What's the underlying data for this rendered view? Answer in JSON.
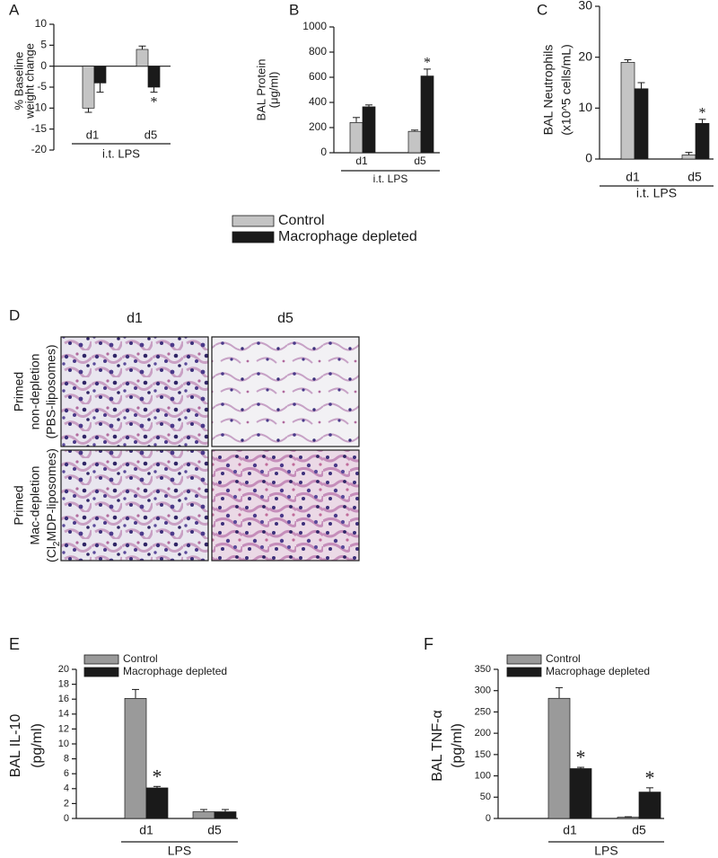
{
  "chart_data": [
    {
      "type": "bar",
      "label": "A",
      "y_label": [
        "% Baseline",
        "weight change"
      ],
      "categories": [
        "d1",
        "d5"
      ],
      "group_label": "i.t. LPS",
      "series": [
        {
          "name": "Control",
          "color": "#c4c4c4",
          "values": [
            -10,
            4
          ],
          "errors": [
            1,
            0.8
          ]
        },
        {
          "name": "Macrophage depleted",
          "color": "#1a1a1a",
          "values": [
            -4,
            -5
          ],
          "errors": [
            2.2,
            1.2
          ]
        }
      ],
      "ylim": [
        -20,
        10
      ],
      "yticks": [
        -20,
        -15,
        -10,
        -5,
        0,
        5,
        10
      ],
      "legend": "below",
      "annotations": [
        {
          "text": "*",
          "category": "d5",
          "series": "Macrophage depleted"
        }
      ]
    },
    {
      "type": "bar",
      "label": "B",
      "y_label": [
        "BAL Protein",
        "(μg/ml)"
      ],
      "categories": [
        "d1",
        "d5"
      ],
      "group_label": "i.t. LPS",
      "series": [
        {
          "name": "Control",
          "color": "#c4c4c4",
          "values": [
            240,
            170
          ],
          "errors": [
            40,
            10
          ]
        },
        {
          "name": "Macrophage depleted",
          "color": "#1a1a1a",
          "values": [
            365,
            610
          ],
          "errors": [
            15,
            55
          ]
        }
      ],
      "ylim": [
        0,
        1000
      ],
      "yticks": [
        0,
        200,
        400,
        600,
        800,
        1000
      ],
      "annotations": [
        {
          "text": "*",
          "category": "d5",
          "series": "Macrophage depleted"
        }
      ]
    },
    {
      "type": "bar",
      "label": "C",
      "y_label": [
        "BAL Neutrophils",
        "(x10^5 cells/mL)"
      ],
      "categories": [
        "d1",
        "d5"
      ],
      "group_label": "i.t. LPS",
      "series": [
        {
          "name": "Control",
          "color": "#c4c4c4",
          "values": [
            19,
            0.8
          ],
          "errors": [
            0.5,
            0.5
          ]
        },
        {
          "name": "Macrophage depleted",
          "color": "#1a1a1a",
          "values": [
            13.8,
            7
          ],
          "errors": [
            1.2,
            0.8
          ]
        }
      ],
      "ylim": [
        0,
        30
      ],
      "yticks": [
        0,
        10,
        20,
        30
      ],
      "annotations": [
        {
          "text": "*",
          "category": "d5",
          "series": "Macrophage depleted"
        }
      ]
    },
    {
      "type": "bar",
      "label": "E",
      "y_label": [
        "BAL IL-10",
        "(pg/ml)"
      ],
      "categories": [
        "d1",
        "d5"
      ],
      "group_label": "LPS",
      "series": [
        {
          "name": "Control",
          "color": "#9a9a9a",
          "values": [
            16.1,
            0.9
          ],
          "errors": [
            1.2,
            0.3
          ]
        },
        {
          "name": "Macrophage depleted",
          "color": "#1a1a1a",
          "values": [
            4.1,
            0.9
          ],
          "errors": [
            0.2,
            0.3
          ]
        }
      ],
      "ylim": [
        0,
        20
      ],
      "yticks": [
        0,
        2,
        4,
        6,
        8,
        10,
        12,
        14,
        16,
        18,
        20
      ],
      "legend": "top-left",
      "annotations": [
        {
          "text": "*",
          "category": "d1",
          "series": "Macrophage depleted"
        }
      ]
    },
    {
      "type": "bar",
      "label": "F",
      "y_label": [
        "BAL TNF-α",
        "(pg/ml)"
      ],
      "categories": [
        "d1",
        "d5"
      ],
      "group_label": "LPS",
      "series": [
        {
          "name": "Control",
          "color": "#9a9a9a",
          "values": [
            282,
            3
          ],
          "errors": [
            25,
            1
          ]
        },
        {
          "name": "Macrophage depleted",
          "color": "#1a1a1a",
          "values": [
            117,
            62
          ],
          "errors": [
            3,
            10
          ]
        }
      ],
      "ylim": [
        0,
        350
      ],
      "yticks": [
        0,
        50,
        100,
        150,
        200,
        250,
        300,
        350
      ],
      "legend": "top-left",
      "annotations": [
        {
          "text": "*",
          "category": "d1",
          "series": "Macrophage depleted"
        },
        {
          "text": "*",
          "category": "d5",
          "series": "Macrophage depleted"
        }
      ]
    }
  ],
  "micrograph_panel": {
    "label": "D",
    "columns": [
      "d1",
      "d5"
    ],
    "rows": [
      [
        "Primed",
        "non-depletion",
        "(PBS-liposomes)"
      ],
      [
        "Primed",
        "Mac-depletion",
        [
          "(Cl",
          "2",
          "MDP-liposomes)"
        ]
      ]
    ]
  }
}
